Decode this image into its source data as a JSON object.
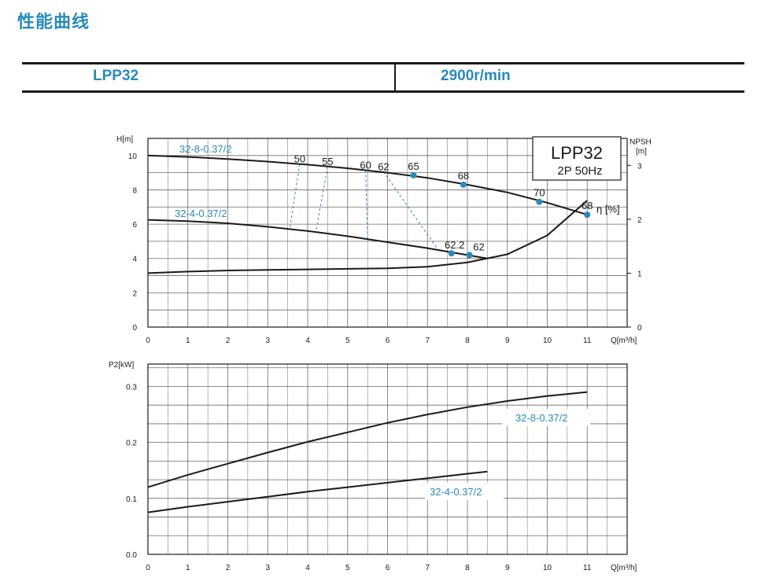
{
  "page_title": "性能曲线",
  "header": {
    "model": "LPP32",
    "speed": "2900r/min"
  },
  "colors": {
    "accent": "#2a8ab8",
    "curve": "#1a1a1a",
    "grid": "#6a6a6a",
    "efficiency_lines": "#2a8ab8"
  },
  "chart_data": [
    {
      "type": "line",
      "title": "LPP32",
      "subtitle": "2P  50Hz",
      "xlabel": "Q[m³/h]",
      "ylabel": "H[m]",
      "y2label": "NPSH",
      "y2unit": "[m]",
      "efficiency_label": "η [%]",
      "xlim": [
        0,
        12
      ],
      "ylim": [
        0,
        11
      ],
      "y2lim": [
        0,
        3.5
      ],
      "xticks": [
        0,
        1,
        2,
        3,
        4,
        5,
        6,
        7,
        8,
        9,
        10,
        11
      ],
      "yticks": [
        0,
        2,
        4,
        6,
        8,
        10
      ],
      "y2ticks": [
        0,
        1,
        2,
        3
      ],
      "grid": true,
      "series": [
        {
          "name": "32-8-0.37/2",
          "role": "head",
          "x": [
            0,
            1,
            2,
            3,
            4,
            5,
            6,
            7,
            8,
            9,
            10,
            11
          ],
          "y": [
            10.0,
            9.92,
            9.8,
            9.65,
            9.47,
            9.26,
            9.0,
            8.7,
            8.3,
            7.85,
            7.25,
            6.55
          ]
        },
        {
          "name": "32-4-0.37/2",
          "role": "head",
          "x": [
            0,
            1,
            2,
            3,
            4,
            5,
            6,
            7,
            8,
            8.5
          ],
          "y": [
            6.25,
            6.18,
            6.05,
            5.85,
            5.6,
            5.3,
            4.95,
            4.6,
            4.2,
            4.0
          ]
        },
        {
          "name": "NPSH",
          "role": "npsh",
          "x": [
            0,
            1,
            2,
            3,
            4,
            5,
            6,
            7,
            8,
            9,
            10,
            11
          ],
          "y": [
            1.0,
            1.03,
            1.05,
            1.06,
            1.07,
            1.08,
            1.09,
            1.12,
            1.2,
            1.35,
            1.7,
            2.35
          ]
        }
      ],
      "efficiency_points": [
        {
          "label": "65",
          "x": 6.65,
          "y": 8.85,
          "dot": true
        },
        {
          "label": "68",
          "x": 7.9,
          "y": 8.3,
          "dot": true
        },
        {
          "label": "70",
          "x": 9.8,
          "y": 7.3,
          "dot": true
        },
        {
          "label": "68",
          "x": 11.0,
          "y": 6.55,
          "dot": true
        },
        {
          "label": "62.2",
          "x": 7.6,
          "y": 4.3,
          "dot": true
        },
        {
          "label": "62",
          "x": 8.05,
          "y": 4.2,
          "dot": true
        }
      ],
      "iso_efficiency": [
        {
          "label": "50",
          "top": [
            3.8,
            9.5
          ],
          "bottom": [
            3.55,
            5.7
          ]
        },
        {
          "label": "55",
          "top": [
            4.5,
            9.35
          ],
          "bottom": [
            4.2,
            5.5
          ]
        },
        {
          "label": "60",
          "top": [
            5.45,
            9.15
          ],
          "bottom": [
            5.5,
            5.15
          ]
        },
        {
          "label": "62",
          "top": [
            5.9,
            9.05
          ],
          "bottom": [
            7.3,
            4.4
          ]
        }
      ]
    },
    {
      "type": "line",
      "xlabel": "Q[m³/h]",
      "ylabel": "P2[kW]",
      "xlim": [
        0,
        12
      ],
      "ylim": [
        0,
        0.34
      ],
      "xticks": [
        0,
        1,
        2,
        3,
        4,
        5,
        6,
        7,
        8,
        9,
        10,
        11
      ],
      "yticks": [
        "0.0",
        "0.1",
        "0.2",
        "0.3"
      ],
      "grid": true,
      "series": [
        {
          "name": "32-8-0.37/2",
          "x": [
            0,
            1,
            2,
            3,
            4,
            5,
            6,
            7,
            8,
            9,
            10,
            11
          ],
          "y": [
            0.12,
            0.142,
            0.162,
            0.182,
            0.201,
            0.218,
            0.235,
            0.25,
            0.263,
            0.274,
            0.283,
            0.29
          ]
        },
        {
          "name": "32-4-0.37/2",
          "x": [
            0,
            1,
            2,
            3,
            4,
            5,
            6,
            7,
            8,
            8.5
          ],
          "y": [
            0.075,
            0.085,
            0.094,
            0.103,
            0.112,
            0.12,
            0.128,
            0.136,
            0.144,
            0.148
          ]
        }
      ]
    }
  ]
}
